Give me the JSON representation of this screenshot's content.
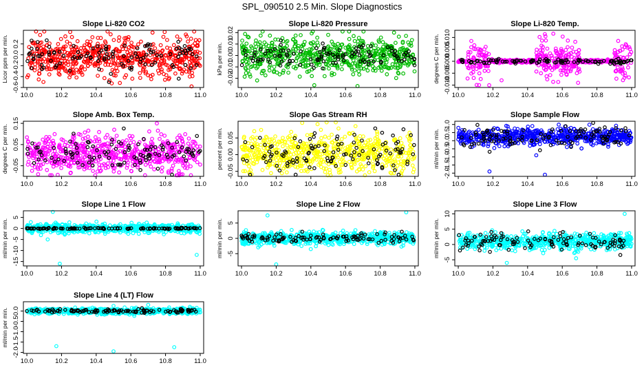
{
  "title": "SPL_090510  2.5 Min. Slope Diagnostics",
  "chart_data": [
    {
      "type": "scatter",
      "title": "Slope Li-820 CO2",
      "ylabel": "Licor ppm per min.",
      "color": "#ff0000",
      "ylim": [
        -0.6,
        0.45
      ],
      "xlim": [
        9.98,
        11.02
      ],
      "yticks": [
        -0.6,
        -0.4,
        -0.2,
        0.0,
        0.2
      ],
      "ytick_labels": [
        "-0.6",
        "-0.4",
        "-0.2",
        "0.0",
        "0.2"
      ],
      "xticks": [
        10.0,
        10.2,
        10.4,
        10.6,
        10.8,
        11.0
      ],
      "xtick_labels": [
        "10.0",
        "10.2",
        "10.4",
        "10.6",
        "10.8",
        "11.0"
      ],
      "shape": "noisy",
      "spread": 0.18,
      "center": -0.05,
      "n_colored": 620,
      "n_black": 110,
      "black_spread": 0.15,
      "outliers": [
        [
          10.25,
          0.42
        ],
        [
          10.95,
          -0.58
        ]
      ]
    },
    {
      "type": "scatter",
      "title": "Slope Li-820 Pressure",
      "ylabel": "kPa per min.",
      "color": "#00bb00",
      "ylim": [
        -0.028,
        0.022
      ],
      "xlim": [
        9.98,
        11.02
      ],
      "yticks": [
        -0.02,
        -0.01,
        0.0,
        0.01,
        0.02
      ],
      "ytick_labels": [
        "-0.02",
        "-0.01",
        "0.00",
        "0.01",
        "0.02"
      ],
      "xticks": [
        10.0,
        10.2,
        10.4,
        10.6,
        10.8,
        11.0
      ],
      "xtick_labels": [
        "10.0",
        "10.2",
        "10.4",
        "10.6",
        "10.8",
        "11.0"
      ],
      "shape": "noisy",
      "spread": 0.008,
      "center": 0.0,
      "n_colored": 620,
      "n_black": 110,
      "black_spread": 0.005,
      "outliers": [
        [
          10.42,
          -0.026
        ],
        [
          10.5,
          0.018
        ],
        [
          10.88,
          0.02
        ]
      ]
    },
    {
      "type": "scatter",
      "title": "Slope Li-820 Temp.",
      "ylabel": "degrees C per min.",
      "color": "#ff00ff",
      "ylim": [
        -0.011,
        0.013
      ],
      "xlim": [
        9.98,
        11.02
      ],
      "yticks": [
        -0.01,
        -0.005,
        0.0,
        0.005,
        0.01
      ],
      "ytick_labels": [
        "-0.010",
        "-0.005",
        "0.000",
        "0.005",
        "0.010"
      ],
      "xticks": [
        10.0,
        10.2,
        10.4,
        10.6,
        10.8,
        11.0
      ],
      "xtick_labels": [
        "10.0",
        "10.2",
        "10.4",
        "10.6",
        "10.8",
        "11.0"
      ],
      "shape": "temp",
      "spread": 0.004,
      "center": 0.0,
      "n_colored": 620,
      "n_black": 110,
      "black_spread": 0.0005,
      "outliers": [
        [
          10.12,
          -0.01
        ],
        [
          10.25,
          -0.008
        ]
      ]
    },
    {
      "type": "scatter",
      "title": "Slope Amb. Box Temp.",
      "ylabel": "degrees C per min.",
      "color": "#ff00ff",
      "ylim": [
        -0.1,
        0.16
      ],
      "xlim": [
        9.98,
        11.02
      ],
      "yticks": [
        -0.05,
        0.05,
        0.15
      ],
      "ytick_labels": [
        "-0.05",
        "0.05",
        "0.15"
      ],
      "xticks": [
        10.0,
        10.2,
        10.4,
        10.6,
        10.8,
        11.0
      ],
      "xtick_labels": [
        "10.0",
        "10.2",
        "10.4",
        "10.6",
        "10.8",
        "11.0"
      ],
      "shape": "noisy",
      "spread": 0.045,
      "center": 0.01,
      "n_colored": 620,
      "n_black": 110,
      "black_spread": 0.035,
      "outliers": [
        [
          10.75,
          0.15
        ]
      ]
    },
    {
      "type": "scatter",
      "title": "Slope Gas Stream RH",
      "ylabel": "percent per min.",
      "color": "#ffff00",
      "ylim": [
        -0.065,
        0.1
      ],
      "xlim": [
        9.98,
        11.02
      ],
      "yticks": [
        -0.05,
        0.0,
        0.05
      ],
      "ytick_labels": [
        "-0.05",
        "0.00",
        "0.05"
      ],
      "xticks": [
        10.0,
        10.2,
        10.4,
        10.6,
        10.8,
        11.0
      ],
      "xtick_labels": [
        "10.0",
        "10.2",
        "10.4",
        "10.6",
        "10.8",
        "11.0"
      ],
      "shape": "noisy",
      "spread": 0.032,
      "center": 0.005,
      "n_colored": 620,
      "n_black": 110,
      "black_spread": 0.03,
      "outliers": [
        [
          10.35,
          0.095
        ]
      ]
    },
    {
      "type": "scatter",
      "title": "Slope Sample Flow",
      "ylabel": "ml/min per min.",
      "color": "#0000ff",
      "ylim": [
        -2.2,
        1.2
      ],
      "xlim": [
        9.98,
        11.02
      ],
      "yticks": [
        -2.0,
        -1.5,
        -1.0,
        -0.5,
        0.0,
        0.5,
        1.0
      ],
      "ytick_labels": [
        "-2.0",
        "-1.5",
        "-1.0",
        "-0.5",
        "0.0",
        "0.5",
        "1.0"
      ],
      "xticks": [
        10.0,
        10.2,
        10.4,
        10.6,
        10.8,
        11.0
      ],
      "xtick_labels": [
        "10.0",
        "10.2",
        "10.4",
        "10.6",
        "10.8",
        "11.0"
      ],
      "shape": "noisy",
      "spread": 0.25,
      "center": 0.25,
      "n_colored": 620,
      "n_black": 110,
      "black_spread": 0.35,
      "outliers": [
        [
          10.18,
          -1.9
        ],
        [
          10.5,
          -2.1
        ],
        [
          10.45,
          -0.9
        ]
      ]
    },
    {
      "type": "scatter",
      "title": "Slope Line 1 Flow",
      "ylabel": "ml/min per min.",
      "color": "#00ffff",
      "ylim": [
        -17,
        8
      ],
      "xlim": [
        9.98,
        11.02
      ],
      "yticks": [
        -15,
        -10,
        -5,
        0,
        5
      ],
      "ytick_labels": [
        "-15",
        "-10",
        "-5",
        "0",
        "5"
      ],
      "xticks": [
        10.0,
        10.2,
        10.4,
        10.6,
        10.8,
        11.0
      ],
      "xtick_labels": [
        "10.0",
        "10.2",
        "10.4",
        "10.6",
        "10.8",
        "11.0"
      ],
      "shape": "noisy",
      "spread": 1.0,
      "center": 0.0,
      "n_colored": 620,
      "n_black": 110,
      "black_spread": 0.15,
      "outliers": [
        [
          10.15,
          7.5
        ],
        [
          10.19,
          -16
        ],
        [
          10.98,
          -12
        ],
        [
          10.12,
          -5
        ]
      ]
    },
    {
      "type": "scatter",
      "title": "Slope Line 2 Flow",
      "ylabel": "ml/min per min.",
      "color": "#00ffff",
      "ylim": [
        -9,
        9
      ],
      "xlim": [
        9.98,
        11.02
      ],
      "yticks": [
        -5,
        0,
        5
      ],
      "ytick_labels": [
        "-5",
        "0",
        "5"
      ],
      "xticks": [
        10.0,
        10.2,
        10.4,
        10.6,
        10.8,
        11.0
      ],
      "xtick_labels": [
        "10.0",
        "10.2",
        "10.4",
        "10.6",
        "10.8",
        "11.0"
      ],
      "shape": "noisy",
      "spread": 1.0,
      "center": 0.0,
      "n_colored": 620,
      "n_black": 110,
      "black_spread": 0.8,
      "outliers": [
        [
          10.2,
          -8.5
        ],
        [
          10.15,
          7.5
        ],
        [
          10.95,
          8.5
        ]
      ]
    },
    {
      "type": "scatter",
      "title": "Slope Line 3 Flow",
      "ylabel": "ml/min per min.",
      "color": "#00ffff",
      "ylim": [
        -7,
        11
      ],
      "xlim": [
        9.98,
        11.02
      ],
      "yticks": [
        -5,
        0,
        5,
        10
      ],
      "ytick_labels": [
        "-5",
        "0",
        "5",
        "10"
      ],
      "xticks": [
        10.0,
        10.2,
        10.4,
        10.6,
        10.8,
        11.0
      ],
      "xtick_labels": [
        "10.0",
        "10.2",
        "10.4",
        "10.6",
        "10.8",
        "11.0"
      ],
      "shape": "noisy",
      "spread": 1.3,
      "center": 1.0,
      "n_colored": 620,
      "n_black": 110,
      "black_spread": 1.5,
      "outliers": [
        [
          10.96,
          10
        ],
        [
          10.28,
          -6
        ],
        [
          10.68,
          -4.5
        ]
      ]
    },
    {
      "type": "scatter",
      "title": "Slope Line 4 (LT) Flow",
      "ylabel": "ml/min per min.",
      "color": "#00ffff",
      "ylim": [
        -2.05,
        0.45
      ],
      "xlim": [
        9.98,
        11.02
      ],
      "yticks": [
        -2.0,
        -1.5,
        -1.0,
        -0.5,
        0.0
      ],
      "ytick_labels": [
        "-2.0",
        "-1.5",
        "-1.0",
        "-0.5",
        "0.0"
      ],
      "xticks": [
        10.0,
        10.2,
        10.4,
        10.6,
        10.8,
        11.0
      ],
      "xtick_labels": [
        "10.0",
        "10.2",
        "10.4",
        "10.6",
        "10.8",
        "11.0"
      ],
      "shape": "noisy",
      "spread": 0.07,
      "center": 0.0,
      "n_colored": 620,
      "n_black": 110,
      "black_spread": 0.05,
      "outliers": [
        [
          10.17,
          -1.7
        ],
        [
          10.5,
          -1.95
        ],
        [
          10.85,
          -1.75
        ],
        [
          10.5,
          0.25
        ],
        [
          10.7,
          0.3
        ]
      ]
    }
  ]
}
